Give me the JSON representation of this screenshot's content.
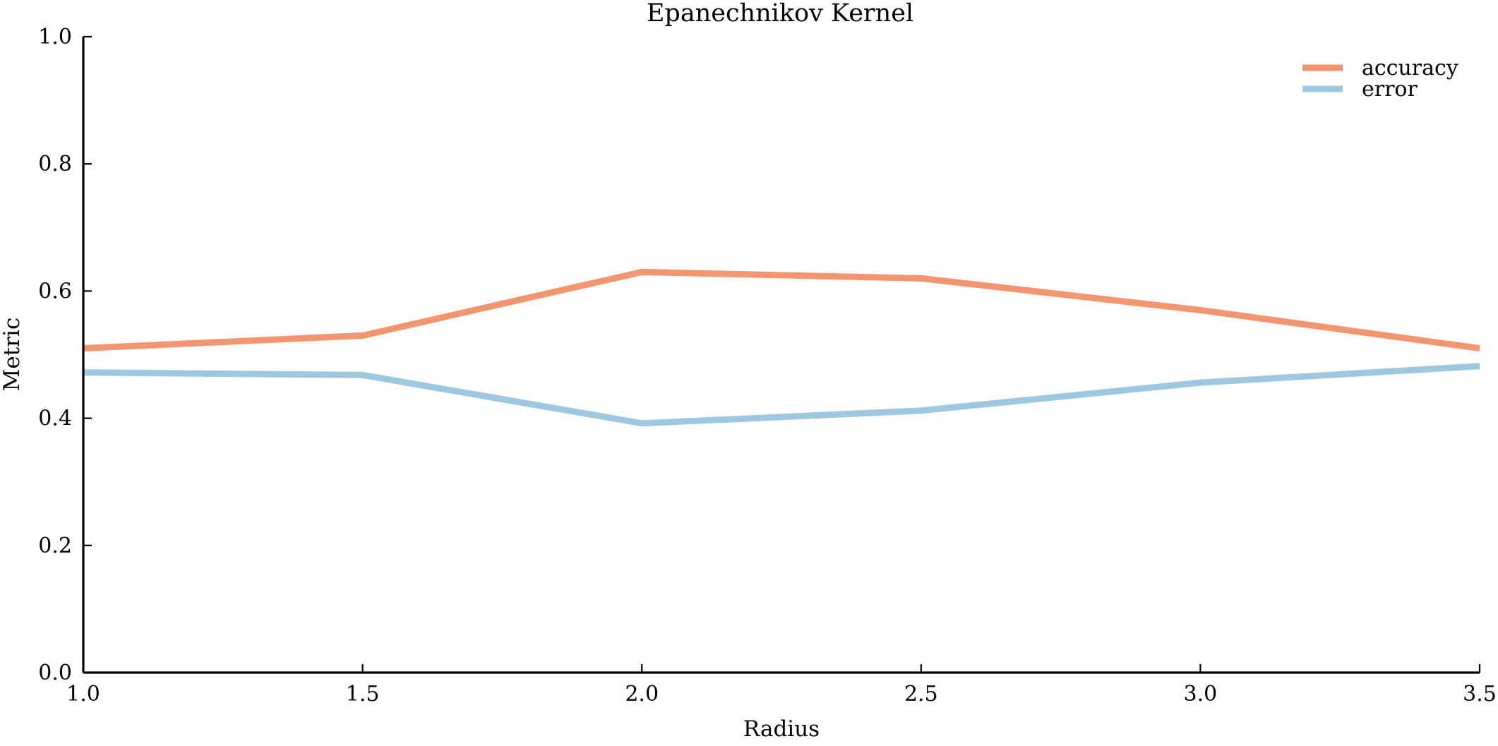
{
  "chart_data": {
    "type": "line",
    "title": "Epanechnikov Kernel",
    "xlabel": "Radius",
    "ylabel": "Metric",
    "xlim": [
      1.0,
      3.5
    ],
    "ylim": [
      0.0,
      1.0
    ],
    "xticks": [
      1.0,
      1.5,
      2.0,
      2.5,
      3.0,
      3.5
    ],
    "xtick_labels": [
      "1.0",
      "1.5",
      "2.0",
      "2.5",
      "3.0",
      "3.5"
    ],
    "yticks": [
      0.0,
      0.2,
      0.4,
      0.6,
      0.8,
      1.0
    ],
    "ytick_labels": [
      "0.0",
      "0.2",
      "0.4",
      "0.6",
      "0.8",
      "1.0"
    ],
    "grid": false,
    "legend_position": "top-right",
    "x": [
      1.0,
      1.5,
      2.0,
      2.5,
      3.0,
      3.5
    ],
    "series": [
      {
        "name": "accuracy",
        "color": "#f4956f",
        "values": [
          0.51,
          0.53,
          0.63,
          0.62,
          0.57,
          0.51
        ]
      },
      {
        "name": "error",
        "color": "#9ec8e0",
        "values": [
          0.472,
          0.468,
          0.392,
          0.412,
          0.456,
          0.482
        ]
      }
    ]
  }
}
